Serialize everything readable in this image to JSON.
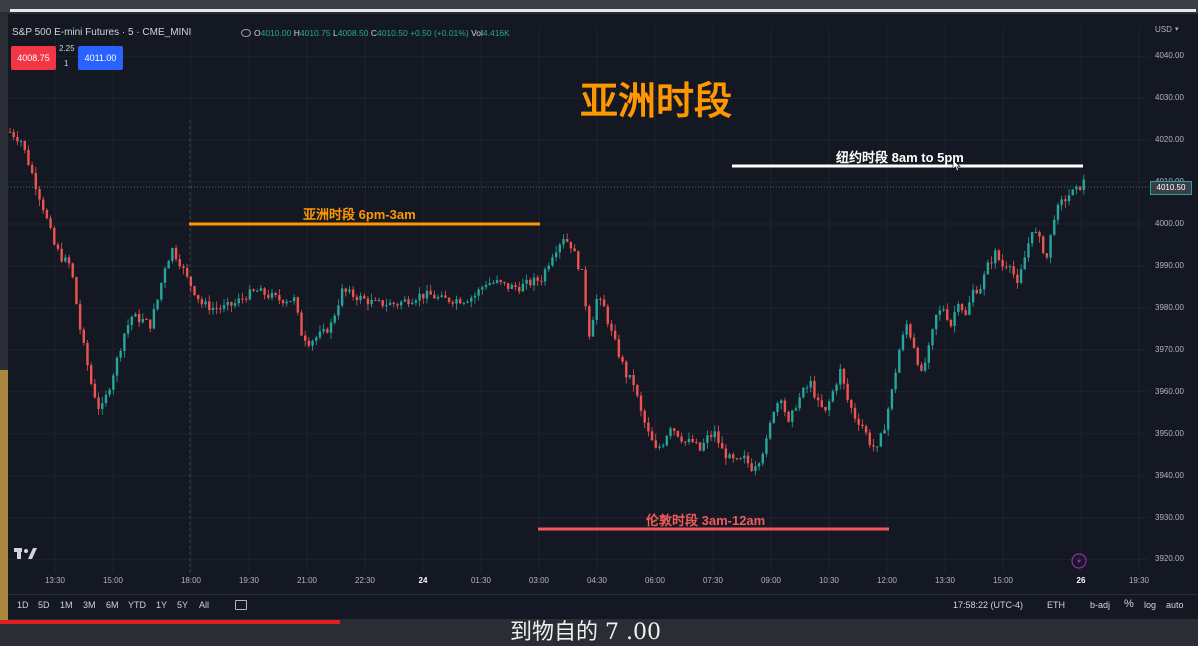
{
  "symbol_title": "S&P 500 E-mini Futures · 5 · CME_MINI",
  "ohlc": {
    "o_label": "O",
    "o": "4010.00",
    "h_label": "H",
    "h": "4010.75",
    "l_label": "L",
    "l": "4008.50",
    "c_label": "C",
    "c": "4010.50",
    "change": "+0.50 (+0.01%)",
    "vol_label": "Vol",
    "vol": "4.416K"
  },
  "order": {
    "sell": "4008.75",
    "spread": "2.25",
    "qty": "1",
    "buy": "4011.00"
  },
  "currency": "USD",
  "y_ticks": [
    "4040.00",
    "4030.00",
    "4020.00",
    "4010.00",
    "4000.00",
    "3990.00",
    "3980.00",
    "3970.00",
    "3960.00",
    "3950.00",
    "3940.00",
    "3930.00",
    "3920.00"
  ],
  "current_price": "4010.50",
  "x_ticks": [
    "13:30",
    "15:00",
    "18:00",
    "19:30",
    "21:00",
    "22:30",
    "24",
    "01:30",
    "03:00",
    "04:30",
    "06:00",
    "07:30",
    "09:00",
    "10:30",
    "12:00",
    "13:30",
    "15:00",
    "26",
    "19:30"
  ],
  "annotations": {
    "big_title": "亚洲时段",
    "asia": "亚洲时段 6pm-3am",
    "newyork": "纽约时段 8am to 5pm",
    "london": "伦敦时段 3am-12am"
  },
  "periods": [
    "1D",
    "5D",
    "1M",
    "3M",
    "6M",
    "YTD",
    "1Y",
    "5Y",
    "All"
  ],
  "time_display": "17:58:22 (UTC-4)",
  "session": "ETH",
  "adj": "b-adj",
  "pct": "%",
  "log": "log",
  "auto": "auto",
  "logo_text": "17",
  "subtitle_text": "到物自的 7 .00",
  "colors": {
    "up": "#26a69a",
    "down": "#ef5350",
    "asia": "#ff9800",
    "london": "#f05a5a",
    "newyork": "#ffffff",
    "bg": "#141823"
  },
  "chart_data": {
    "type": "candlestick",
    "ylim": [
      3917,
      4047
    ],
    "y_axis_ticks": [
      4040,
      4030,
      4020,
      4010,
      4000,
      3990,
      3980,
      3970,
      3960,
      3950,
      3940,
      3930,
      3920
    ],
    "close_path": [
      [
        0,
        4022
      ],
      [
        6,
        4020
      ],
      [
        12,
        4012
      ],
      [
        18,
        4004
      ],
      [
        24,
        3995
      ],
      [
        28,
        3992
      ],
      [
        33,
        3990
      ],
      [
        38,
        3975
      ],
      [
        44,
        3962
      ],
      [
        49,
        3955
      ],
      [
        53,
        3960
      ],
      [
        57,
        3966
      ],
      [
        62,
        3974
      ],
      [
        66,
        3978
      ],
      [
        72,
        3977
      ],
      [
        76,
        3976
      ],
      [
        80,
        3982
      ],
      [
        84,
        3990
      ],
      [
        88,
        3994
      ],
      [
        92,
        3991
      ],
      [
        96,
        3987
      ],
      [
        100,
        3984
      ],
      [
        104,
        3981
      ],
      [
        110,
        3980
      ],
      [
        116,
        3980
      ],
      [
        122,
        3981
      ],
      [
        128,
        3983
      ],
      [
        134,
        3984
      ],
      [
        140,
        3983
      ],
      [
        146,
        3982
      ],
      [
        150,
        3982
      ],
      [
        154,
        3982
      ],
      [
        158,
        3974
      ],
      [
        162,
        3972
      ],
      [
        166,
        3973
      ],
      [
        170,
        3974
      ],
      [
        174,
        3976
      ],
      [
        180,
        3984
      ],
      [
        186,
        3983
      ],
      [
        192,
        3982
      ],
      [
        198,
        3981
      ],
      [
        204,
        3981
      ],
      [
        210,
        3981
      ],
      [
        216,
        3982
      ],
      [
        222,
        3983
      ],
      [
        228,
        3983
      ],
      [
        234,
        3982
      ],
      [
        240,
        3982
      ],
      [
        246,
        3982
      ],
      [
        252,
        3983
      ],
      [
        258,
        3986
      ],
      [
        264,
        3986
      ],
      [
        270,
        3985
      ],
      [
        276,
        3985
      ],
      [
        282,
        3986
      ],
      [
        288,
        3987
      ],
      [
        294,
        3993
      ],
      [
        300,
        3997
      ],
      [
        304,
        3995
      ],
      [
        310,
        3988
      ],
      [
        314,
        3974
      ],
      [
        318,
        3982
      ],
      [
        322,
        3980
      ],
      [
        326,
        3974
      ],
      [
        330,
        3969
      ],
      [
        334,
        3964
      ],
      [
        338,
        3962
      ],
      [
        342,
        3955
      ],
      [
        346,
        3950
      ],
      [
        350,
        3946
      ],
      [
        354,
        3948
      ],
      [
        358,
        3952
      ],
      [
        362,
        3950
      ],
      [
        366,
        3948
      ],
      [
        370,
        3948
      ],
      [
        374,
        3946
      ],
      [
        378,
        3949
      ],
      [
        382,
        3950
      ],
      [
        386,
        3946
      ],
      [
        390,
        3944
      ],
      [
        394,
        3943
      ],
      [
        398,
        3944
      ],
      [
        402,
        3942
      ],
      [
        406,
        3944
      ],
      [
        410,
        3948
      ],
      [
        414,
        3956
      ],
      [
        418,
        3959
      ],
      [
        422,
        3952
      ],
      [
        426,
        3957
      ],
      [
        430,
        3960
      ],
      [
        434,
        3962
      ],
      [
        438,
        3957
      ],
      [
        442,
        3955
      ],
      [
        446,
        3960
      ],
      [
        450,
        3965
      ],
      [
        454,
        3958
      ],
      [
        458,
        3954
      ],
      [
        462,
        3952
      ],
      [
        466,
        3948
      ],
      [
        470,
        3946
      ],
      [
        474,
        3952
      ],
      [
        478,
        3960
      ],
      [
        482,
        3970
      ],
      [
        486,
        3976
      ],
      [
        490,
        3971
      ],
      [
        494,
        3964
      ],
      [
        498,
        3970
      ],
      [
        502,
        3978
      ],
      [
        506,
        3980
      ],
      [
        510,
        3976
      ],
      [
        514,
        3982
      ],
      [
        518,
        3978
      ],
      [
        522,
        3984
      ],
      [
        526,
        3985
      ],
      [
        530,
        3990
      ],
      [
        534,
        3993
      ],
      [
        538,
        3990
      ],
      [
        542,
        3991
      ],
      [
        546,
        3985
      ],
      [
        550,
        3992
      ],
      [
        554,
        3999
      ],
      [
        558,
        3996
      ],
      [
        562,
        3992
      ],
      [
        566,
        4002
      ],
      [
        570,
        4005
      ],
      [
        574,
        4007
      ],
      [
        578,
        4008
      ],
      [
        582,
        4010
      ]
    ]
  }
}
